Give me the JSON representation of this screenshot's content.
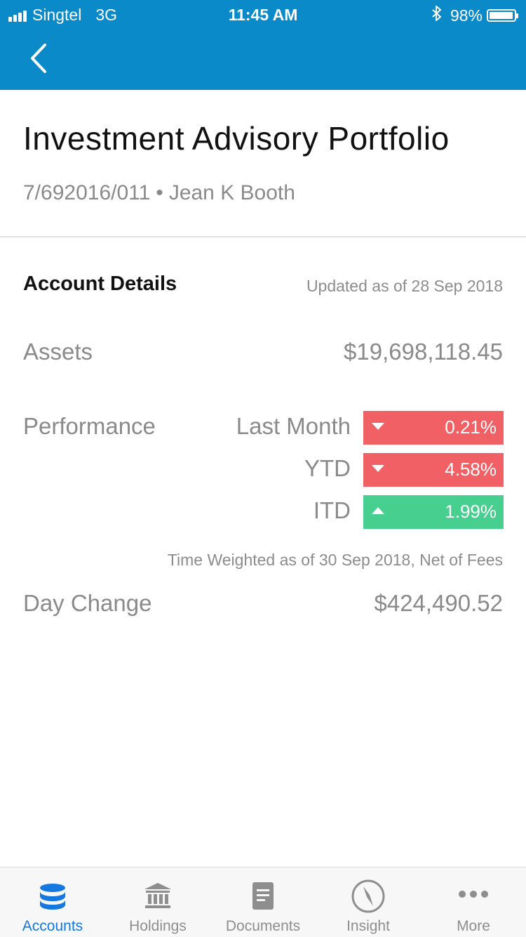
{
  "status_bar": {
    "carrier": "Singtel",
    "network": "3G",
    "time": "11:45 AM",
    "battery": "98%",
    "battery_level": 0.98
  },
  "header": {
    "title": "Investment Advisory Portfolio",
    "account_number": "7/692016/011",
    "separator": "•",
    "owner": "Jean K Booth"
  },
  "account_details": {
    "heading": "Account Details",
    "updated": "Updated as of 28 Sep 2018",
    "assets_label": "Assets",
    "assets_value": "$19,698,118.45",
    "performance_label": "Performance",
    "performance": [
      {
        "name": "Last Month",
        "value": "0.21%",
        "direction": "down"
      },
      {
        "name": "YTD",
        "value": "4.58%",
        "direction": "down"
      },
      {
        "name": "ITD",
        "value": "1.99%",
        "direction": "up"
      }
    ],
    "performance_note": "Time Weighted as of 30 Sep 2018, Net of Fees",
    "day_change_label": "Day Change",
    "day_change_value": "$424,490.52"
  },
  "tabs": [
    {
      "label": "Accounts",
      "icon": "database-icon",
      "active": true
    },
    {
      "label": "Holdings",
      "icon": "bank-icon",
      "active": false
    },
    {
      "label": "Documents",
      "icon": "document-icon",
      "active": false
    },
    {
      "label": "Insight",
      "icon": "compass-icon",
      "active": false
    },
    {
      "label": "More",
      "icon": "more-icon",
      "active": false
    }
  ],
  "colors": {
    "header_bg": "#0a8ac9",
    "negative": "#f06065",
    "positive": "#47cf8f",
    "active_tab": "#1478e0",
    "inactive_tab": "#8e8e8e"
  }
}
